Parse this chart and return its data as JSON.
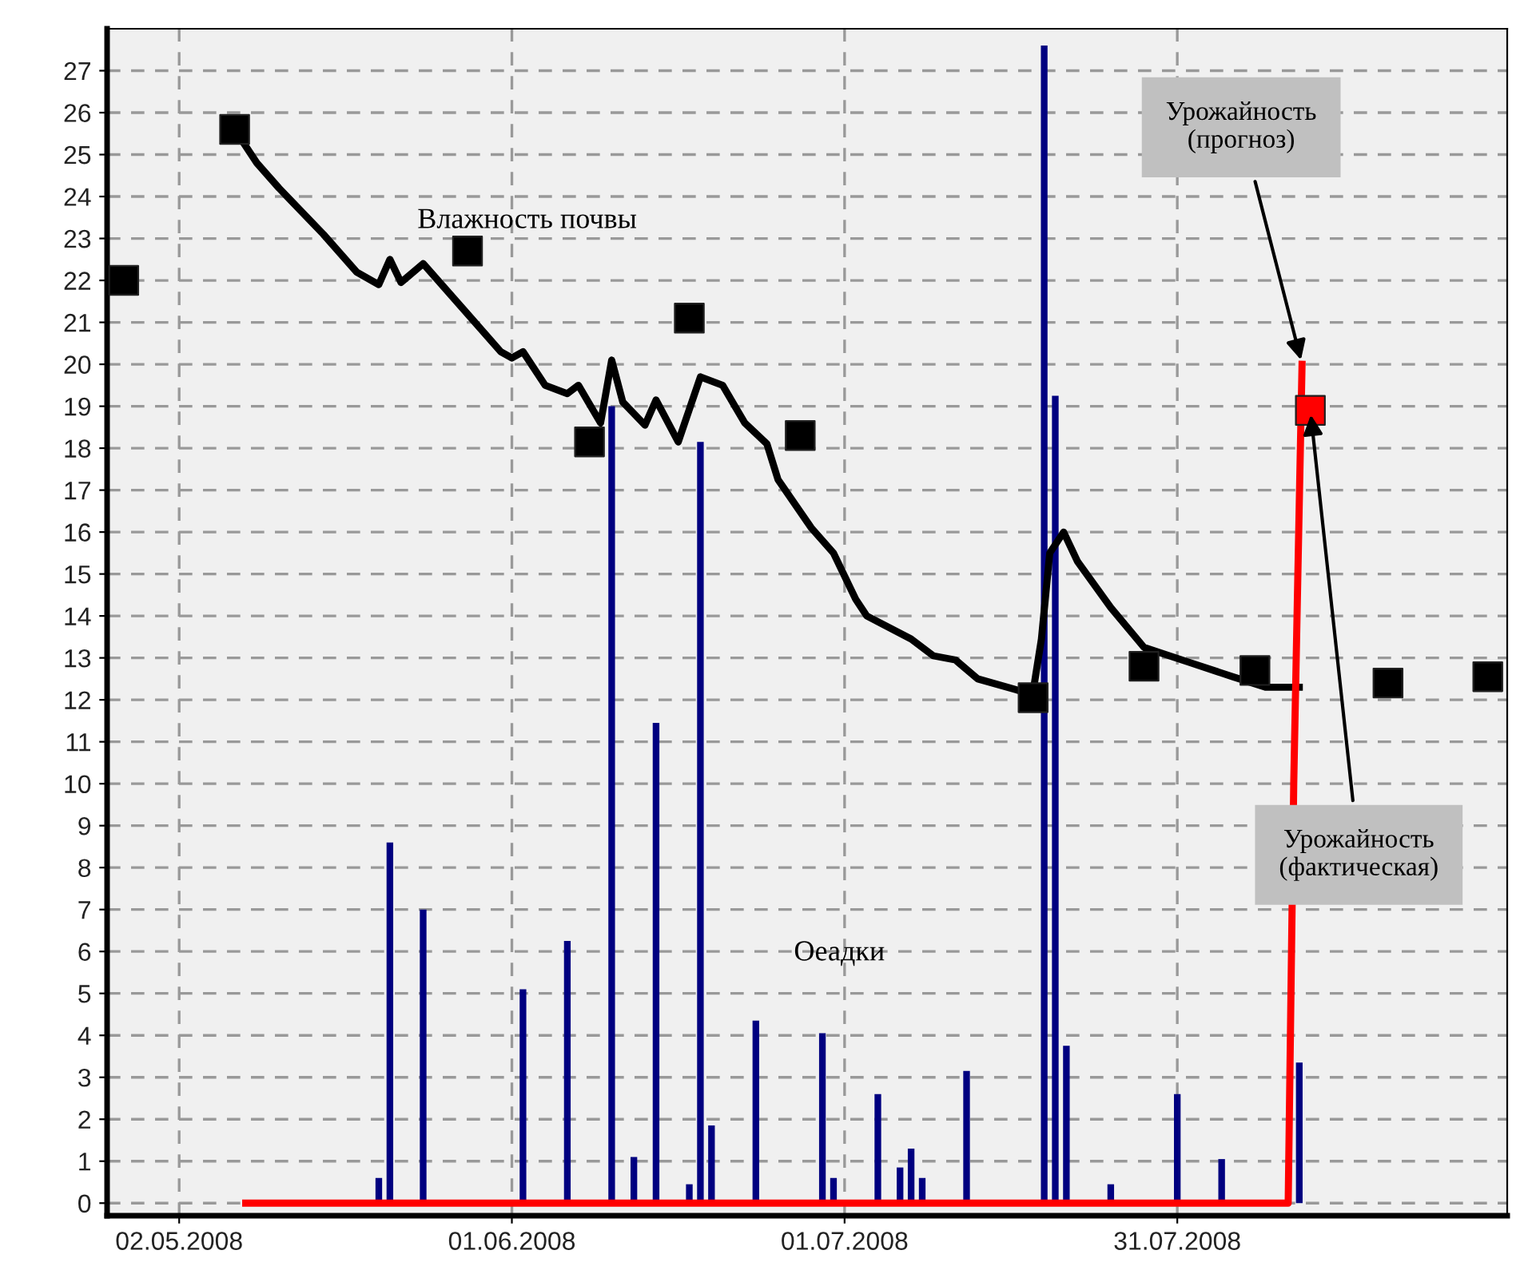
{
  "chart_data": {
    "type": "line",
    "xlim": [
      "2008-04-25T12:00",
      "2008-08-29T18:00"
    ],
    "xticks": [
      {
        "value": "2008-05-02",
        "label": "02.05.2008"
      },
      {
        "value": "2008-06-01",
        "label": "01.06.2008"
      },
      {
        "value": "2008-07-01",
        "label": "01.07.2008"
      },
      {
        "value": "2008-07-31",
        "label": "31.07.2008"
      }
    ],
    "ylim": [
      -0.3,
      28
    ],
    "yticks": [
      0,
      1,
      2,
      3,
      4,
      5,
      6,
      7,
      8,
      9,
      10,
      11,
      12,
      13,
      14,
      15,
      16,
      17,
      18,
      19,
      20,
      21,
      22,
      23,
      24,
      25,
      26,
      27
    ],
    "grid": true,
    "legend": false,
    "series": [
      {
        "name": "Оеадки",
        "type": "bar",
        "color": "#000080",
        "x": [
          "2008-05-20",
          "2008-05-21",
          "2008-05-24",
          "2008-06-02",
          "2008-06-06",
          "2008-06-10",
          "2008-06-12",
          "2008-06-14",
          "2008-06-17",
          "2008-06-18",
          "2008-06-19",
          "2008-06-23",
          "2008-06-29",
          "2008-06-30",
          "2008-07-04",
          "2008-07-06",
          "2008-07-07",
          "2008-07-08",
          "2008-07-12",
          "2008-07-19",
          "2008-07-20",
          "2008-07-21",
          "2008-07-25",
          "2008-07-31",
          "2008-08-04",
          "2008-08-11"
        ],
        "values": [
          0.6,
          8.6,
          7.0,
          5.1,
          6.25,
          19.0,
          1.1,
          11.45,
          0.45,
          18.15,
          1.85,
          4.35,
          4.05,
          0.6,
          2.6,
          0.85,
          1.3,
          0.6,
          3.15,
          27.6,
          19.25,
          3.75,
          0.45,
          2.6,
          1.05,
          3.35
        ]
      },
      {
        "name": "Влажность почвы",
        "color": "#000000",
        "x": [
          "2008-05-07",
          "2008-05-09",
          "2008-05-11",
          "2008-05-15",
          "2008-05-18",
          "2008-05-20",
          "2008-05-21",
          "2008-05-22",
          "2008-05-24",
          "2008-05-26",
          "2008-05-28",
          "2008-05-31",
          "2008-06-01",
          "2008-06-02",
          "2008-06-04",
          "2008-06-06",
          "2008-06-07",
          "2008-06-09",
          "2008-06-10",
          "2008-06-11",
          "2008-06-13",
          "2008-06-14",
          "2008-06-16",
          "2008-06-18",
          "2008-06-20",
          "2008-06-22",
          "2008-06-24",
          "2008-06-25",
          "2008-06-28",
          "2008-06-30",
          "2008-07-02",
          "2008-07-03",
          "2008-07-07",
          "2008-07-09",
          "2008-07-11",
          "2008-07-13",
          "2008-07-17",
          "2008-07-18",
          "2008-07-18T18:00",
          "2008-07-19T12:00",
          "2008-07-20T18:00",
          "2008-07-22",
          "2008-07-25",
          "2008-07-28",
          "2008-08-01",
          "2008-08-05",
          "2008-08-08",
          "2008-08-11"
        ],
        "values": [
          25.6,
          24.8,
          24.2,
          23.1,
          22.2,
          21.9,
          22.5,
          21.95,
          22.4,
          21.8,
          21.2,
          20.3,
          20.15,
          20.3,
          19.5,
          19.3,
          19.5,
          18.6,
          20.1,
          19.1,
          18.55,
          19.15,
          18.15,
          19.7,
          19.5,
          18.6,
          18.1,
          17.25,
          16.1,
          15.5,
          14.4,
          14.0,
          13.45,
          13.05,
          12.95,
          12.5,
          12.2,
          12.2,
          13.45,
          15.5,
          16.0,
          15.3,
          14.2,
          13.25,
          12.9,
          12.55,
          12.3,
          12.3
        ]
      },
      {
        "type": "scatter",
        "marker": "square",
        "color": "#000000",
        "x": [
          "2008-04-27",
          "2008-05-07",
          "2008-05-28",
          "2008-06-08",
          "2008-06-17",
          "2008-06-27",
          "2008-07-18",
          "2008-07-28",
          "2008-08-07",
          "2008-08-19",
          "2008-08-28"
        ],
        "values": [
          22.0,
          25.6,
          22.7,
          18.15,
          21.1,
          18.3,
          12.05,
          12.8,
          12.7,
          12.4,
          12.55
        ]
      },
      {
        "name": "Урожайность\n(прогноз)",
        "color": "#ff0000",
        "x": [
          "2008-05-08",
          "2008-08-10",
          "2008-08-10T12:00",
          "2008-08-11",
          "2008-08-11T06:00"
        ],
        "values": [
          0,
          0,
          10.0,
          16.7,
          20.0
        ]
      },
      {
        "name": "Урожайность\n(фактическая)",
        "type": "scatter",
        "marker": "square",
        "color": "#ff0000",
        "x": [
          "2008-08-12"
        ],
        "values": [
          18.9
        ]
      }
    ]
  }
}
